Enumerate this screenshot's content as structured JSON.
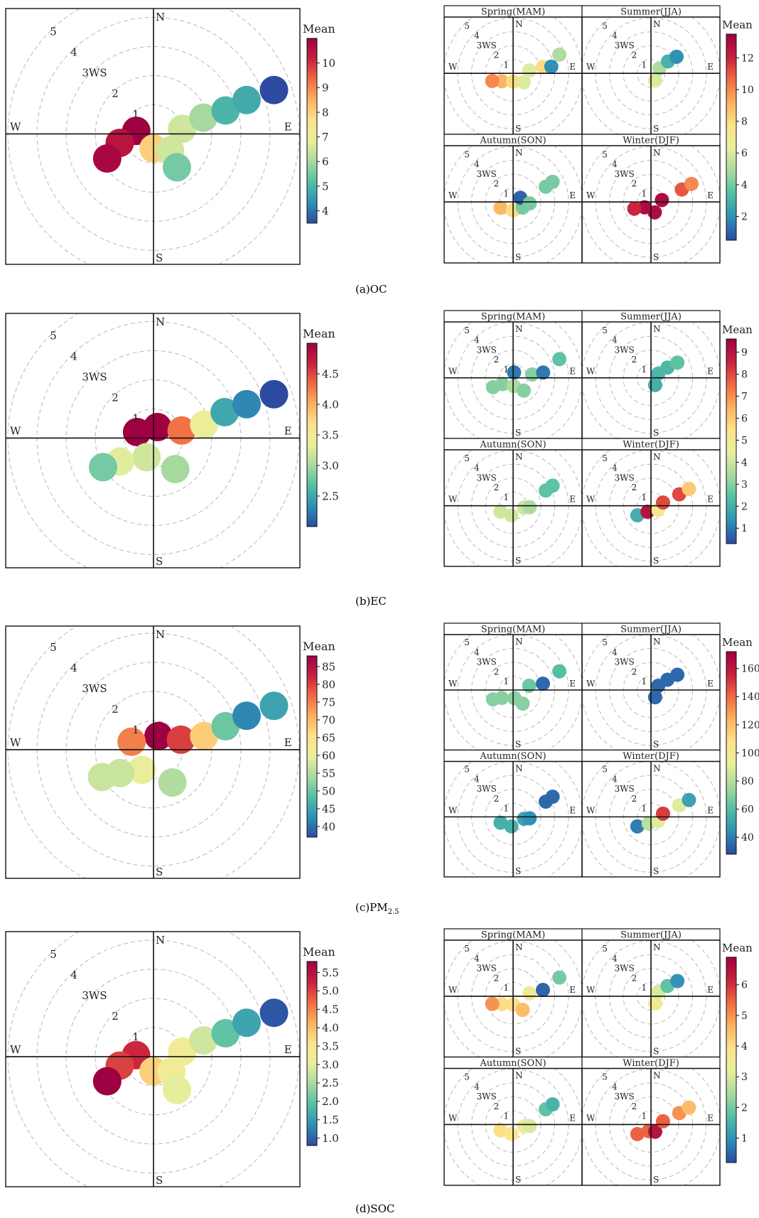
{
  "figure": {
    "colorbar_title": "Mean",
    "direction_labels": [
      "N",
      "E",
      "S",
      "W"
    ],
    "ring_labels": [
      "1",
      "2",
      "3WS",
      "4",
      "5"
    ],
    "season_titles": [
      "Spring(MAM)",
      "Summer(JJA)",
      "Autumn(SON)",
      "Winter(DJF)"
    ],
    "captions": [
      "(a)OC",
      "(b)EC",
      "(c)PM",
      "(d)SOC"
    ],
    "caption_subscript_pm": "2.5",
    "colormap": [
      "#2c4ba0",
      "#2f8fb6",
      "#53bfa5",
      "#a7d99f",
      "#e8ef9c",
      "#fde38c",
      "#fbb25f",
      "#f06b43",
      "#c8203f",
      "#9e0142"
    ]
  },
  "chart_data": [
    {
      "type": "heatmap",
      "subtype": "polar-plot",
      "title": "(a)OC",
      "panel": "annual",
      "colorbar_label": "Mean",
      "colorbar_ticks": [
        "4",
        "5",
        "6",
        "7",
        "8",
        "9",
        "10"
      ],
      "colorbar_range": [
        3.5,
        11
      ],
      "blobs": [
        {
          "ws": 0.6,
          "dir": 280,
          "value": 11
        },
        {
          "ws": 1.2,
          "dir": 255,
          "value": 10.5
        },
        {
          "ws": 1.8,
          "dir": 242,
          "value": 10.8
        },
        {
          "ws": 0.5,
          "dir": 180,
          "value": 8
        },
        {
          "ws": 0.8,
          "dir": 135,
          "value": 6.5
        },
        {
          "ws": 1.4,
          "dir": 145,
          "value": 5.5
        },
        {
          "ws": 1.0,
          "dir": 80,
          "value": 6.5
        },
        {
          "ws": 1.8,
          "dir": 72,
          "value": 6
        },
        {
          "ws": 2.6,
          "dir": 72,
          "value": 5
        },
        {
          "ws": 3.4,
          "dir": 70,
          "value": 4.8
        },
        {
          "ws": 4.4,
          "dir": 70,
          "value": 3.5
        }
      ]
    },
    {
      "type": "heatmap",
      "subtype": "polar-plot",
      "title": "(a)OC",
      "panel": "seasonal",
      "colorbar_label": "Mean",
      "colorbar_ticks": [
        "2",
        "4",
        "6",
        "8",
        "10",
        "12"
      ],
      "colorbar_range": [
        0.5,
        13.5
      ],
      "seasons": [
        {
          "season": "Spring(MAM)",
          "blobs": [
            {
              "ws": 1.0,
              "dir": 235,
              "value": 9
            },
            {
              "ws": 0.6,
              "dir": 180,
              "value": 8
            },
            {
              "ws": 1.6,
              "dir": 250,
              "value": 10
            },
            {
              "ws": 1.0,
              "dir": 130,
              "value": 6
            },
            {
              "ws": 1.2,
              "dir": 80,
              "value": 6
            },
            {
              "ws": 2.2,
              "dir": 78,
              "value": 8
            },
            {
              "ws": 2.8,
              "dir": 80,
              "value": 2
            },
            {
              "ws": 3.6,
              "dir": 68,
              "value": 5
            }
          ]
        },
        {
          "season": "Summer(JJA)",
          "blobs": [
            {
              "ws": 0.6,
              "dir": 150,
              "value": 6
            },
            {
              "ws": 0.7,
              "dir": 60,
              "value": 5
            },
            {
              "ws": 1.5,
              "dir": 55,
              "value": 3
            },
            {
              "ws": 2.2,
              "dir": 57,
              "value": 2
            }
          ]
        },
        {
          "season": "Autumn(SON)",
          "blobs": [
            {
              "ws": 1.0,
              "dir": 245,
              "value": 9
            },
            {
              "ws": 0.6,
              "dir": 180,
              "value": 8
            },
            {
              "ws": 0.8,
              "dir": 120,
              "value": 4
            },
            {
              "ws": 0.6,
              "dir": 60,
              "value": 1
            },
            {
              "ws": 1.2,
              "dir": 95,
              "value": 4
            },
            {
              "ws": 2.6,
              "dir": 65,
              "value": 4
            },
            {
              "ws": 3.2,
              "dir": 63,
              "value": 4
            }
          ]
        },
        {
          "season": "Winter(DJF)",
          "blobs": [
            {
              "ws": 0.6,
              "dir": 230,
              "value": 13
            },
            {
              "ws": 1.3,
              "dir": 248,
              "value": 12
            },
            {
              "ws": 0.8,
              "dir": 160,
              "value": 13
            },
            {
              "ws": 0.8,
              "dir": 80,
              "value": 13
            },
            {
              "ws": 2.4,
              "dir": 68,
              "value": 11
            },
            {
              "ws": 3.2,
              "dir": 66,
              "value": 10
            }
          ]
        }
      ]
    },
    {
      "type": "heatmap",
      "subtype": "polar-plot",
      "title": "(b)EC",
      "panel": "annual",
      "colorbar_label": "Mean",
      "colorbar_ticks": [
        "2.5",
        "3.0",
        "3.5",
        "4.0",
        "4.5"
      ],
      "colorbar_range": [
        2.0,
        5.0
      ],
      "blobs": [
        {
          "ws": 0.6,
          "dir": 290,
          "value": 5
        },
        {
          "ws": 0.4,
          "dir": 20,
          "value": 5
        },
        {
          "ws": 1.0,
          "dir": 75,
          "value": 4.3
        },
        {
          "ws": 0.7,
          "dir": 200,
          "value": 3.2
        },
        {
          "ws": 1.4,
          "dir": 235,
          "value": 3.3
        },
        {
          "ws": 2.0,
          "dir": 240,
          "value": 2.8
        },
        {
          "ws": 1.3,
          "dir": 145,
          "value": 3.0
        },
        {
          "ws": 1.8,
          "dir": 75,
          "value": 3.4
        },
        {
          "ws": 2.6,
          "dir": 70,
          "value": 2.5
        },
        {
          "ws": 3.4,
          "dir": 70,
          "value": 2.3
        },
        {
          "ws": 4.4,
          "dir": 70,
          "value": 2.0
        }
      ]
    },
    {
      "type": "heatmap",
      "subtype": "polar-plot",
      "title": "(b)EC",
      "panel": "seasonal",
      "colorbar_label": "Mean",
      "colorbar_ticks": [
        "1",
        "2",
        "3",
        "4",
        "5",
        "6",
        "7",
        "8",
        "9"
      ],
      "colorbar_range": [
        0.3,
        9.6
      ],
      "seasons": [
        {
          "season": "Spring(MAM)",
          "blobs": [
            {
              "ws": 0.9,
              "dir": 240,
              "value": 3
            },
            {
              "ws": 0.6,
              "dir": 175,
              "value": 3.5
            },
            {
              "ws": 1.6,
              "dir": 245,
              "value": 3
            },
            {
              "ws": 1.2,
              "dir": 140,
              "value": 3
            },
            {
              "ws": 0.4,
              "dir": 10,
              "value": 1
            },
            {
              "ws": 1.4,
              "dir": 80,
              "value": 3
            },
            {
              "ws": 2.2,
              "dir": 80,
              "value": 1
            },
            {
              "ws": 3.6,
              "dir": 68,
              "value": 2.5
            }
          ]
        },
        {
          "season": "Summer(JJA)",
          "blobs": [
            {
              "ws": 0.6,
              "dir": 150,
              "value": 2
            },
            {
              "ws": 0.6,
              "dir": 60,
              "value": 2.2
            },
            {
              "ws": 1.4,
              "dir": 58,
              "value": 2.2
            },
            {
              "ws": 2.2,
              "dir": 60,
              "value": 2.5
            }
          ]
        },
        {
          "season": "Autumn(SON)",
          "blobs": [
            {
              "ws": 1.0,
              "dir": 245,
              "value": 4
            },
            {
              "ws": 0.7,
              "dir": 190,
              "value": 4
            },
            {
              "ws": 0.8,
              "dir": 100,
              "value": 4
            },
            {
              "ws": 1.2,
              "dir": 95,
              "value": 3.5
            },
            {
              "ws": 2.6,
              "dir": 65,
              "value": 2.5
            },
            {
              "ws": 3.2,
              "dir": 63,
              "value": 2.5
            }
          ]
        },
        {
          "season": "Winter(DJF)",
          "blobs": [
            {
              "ws": 1.2,
              "dir": 235,
              "value": 2
            },
            {
              "ws": 0.5,
              "dir": 210,
              "value": 9
            },
            {
              "ws": 0.6,
              "dir": 120,
              "value": 5
            },
            {
              "ws": 0.9,
              "dir": 75,
              "value": 8
            },
            {
              "ws": 2.2,
              "dir": 68,
              "value": 8
            },
            {
              "ws": 3.0,
              "dir": 66,
              "value": 6
            }
          ]
        }
      ]
    },
    {
      "type": "heatmap",
      "subtype": "polar-plot",
      "title": "(c)PM2.5",
      "panel": "annual",
      "colorbar_label": "Mean",
      "colorbar_ticks": [
        "40",
        "45",
        "50",
        "55",
        "60",
        "65",
        "70",
        "75",
        "80",
        "85"
      ],
      "colorbar_range": [
        37,
        88
      ],
      "blobs": [
        {
          "ws": 0.5,
          "dir": 20,
          "value": 88
        },
        {
          "ws": 0.8,
          "dir": 290,
          "value": 75
        },
        {
          "ws": 1.0,
          "dir": 70,
          "value": 80
        },
        {
          "ws": 0.8,
          "dir": 210,
          "value": 60
        },
        {
          "ws": 1.4,
          "dir": 235,
          "value": 57
        },
        {
          "ws": 2.0,
          "dir": 242,
          "value": 57
        },
        {
          "ws": 1.3,
          "dir": 150,
          "value": 55
        },
        {
          "ws": 1.8,
          "dir": 75,
          "value": 68
        },
        {
          "ws": 2.6,
          "dir": 72,
          "value": 50
        },
        {
          "ws": 3.4,
          "dir": 70,
          "value": 42
        },
        {
          "ws": 4.4,
          "dir": 70,
          "value": 45
        }
      ]
    },
    {
      "type": "heatmap",
      "subtype": "polar-plot",
      "title": "(c)PM2.5",
      "panel": "seasonal",
      "colorbar_label": "Mean",
      "colorbar_ticks": [
        "40",
        "60",
        "80",
        "100",
        "120",
        "140",
        "160"
      ],
      "colorbar_range": [
        28,
        172
      ],
      "seasons": [
        {
          "season": "Spring(MAM)",
          "blobs": [
            {
              "ws": 1.0,
              "dir": 235,
              "value": 70
            },
            {
              "ws": 0.6,
              "dir": 170,
              "value": 70
            },
            {
              "ws": 1.6,
              "dir": 245,
              "value": 70
            },
            {
              "ws": 1.2,
              "dir": 145,
              "value": 70
            },
            {
              "ws": 1.2,
              "dir": 75,
              "value": 65
            },
            {
              "ws": 2.2,
              "dir": 78,
              "value": 35
            },
            {
              "ws": 3.6,
              "dir": 68,
              "value": 60
            }
          ]
        },
        {
          "season": "Summer(JJA)",
          "blobs": [
            {
              "ws": 0.6,
              "dir": 150,
              "value": 35
            },
            {
              "ws": 0.6,
              "dir": 60,
              "value": 35
            },
            {
              "ws": 1.4,
              "dir": 58,
              "value": 35
            },
            {
              "ws": 2.2,
              "dir": 60,
              "value": 35
            }
          ]
        },
        {
          "season": "Autumn(SON)",
          "blobs": [
            {
              "ws": 1.0,
              "dir": 245,
              "value": 55
            },
            {
              "ws": 0.7,
              "dir": 190,
              "value": 55
            },
            {
              "ws": 0.8,
              "dir": 100,
              "value": 50
            },
            {
              "ws": 1.2,
              "dir": 95,
              "value": 45
            },
            {
              "ws": 2.6,
              "dir": 65,
              "value": 35
            },
            {
              "ws": 3.2,
              "dir": 63,
              "value": 35
            }
          ]
        },
        {
          "season": "Winter(DJF)",
          "blobs": [
            {
              "ws": 1.2,
              "dir": 235,
              "value": 40
            },
            {
              "ws": 0.5,
              "dir": 200,
              "value": 80
            },
            {
              "ws": 0.6,
              "dir": 120,
              "value": 90
            },
            {
              "ws": 0.9,
              "dir": 75,
              "value": 150
            },
            {
              "ws": 2.2,
              "dir": 68,
              "value": 90
            },
            {
              "ws": 3.0,
              "dir": 66,
              "value": 50
            }
          ]
        }
      ]
    },
    {
      "type": "heatmap",
      "subtype": "polar-plot",
      "title": "(d)SOC",
      "panel": "annual",
      "colorbar_label": "Mean",
      "colorbar_ticks": [
        "1.0",
        "1.5",
        "2.0",
        "2.5",
        "3.0",
        "3.5",
        "4.0",
        "4.5",
        "5.0",
        "5.5"
      ],
      "colorbar_range": [
        0.8,
        5.8
      ],
      "blobs": [
        {
          "ws": 0.6,
          "dir": 275,
          "value": 5.2
        },
        {
          "ws": 1.2,
          "dir": 255,
          "value": 5.0
        },
        {
          "ws": 1.8,
          "dir": 242,
          "value": 5.8
        },
        {
          "ws": 0.5,
          "dir": 180,
          "value": 3.8
        },
        {
          "ws": 0.8,
          "dir": 130,
          "value": 3.2
        },
        {
          "ws": 1.4,
          "dir": 145,
          "value": 3.0
        },
        {
          "ws": 1.0,
          "dir": 80,
          "value": 3.2
        },
        {
          "ws": 1.8,
          "dir": 72,
          "value": 2.8
        },
        {
          "ws": 2.6,
          "dir": 72,
          "value": 2.0
        },
        {
          "ws": 3.4,
          "dir": 70,
          "value": 1.6
        },
        {
          "ws": 4.4,
          "dir": 70,
          "value": 0.9
        }
      ]
    },
    {
      "type": "heatmap",
      "subtype": "polar-plot",
      "title": "(d)SOC",
      "panel": "seasonal",
      "colorbar_label": "Mean",
      "colorbar_ticks": [
        "1",
        "2",
        "3",
        "4",
        "5",
        "6"
      ],
      "colorbar_range": [
        0.2,
        6.9
      ],
      "seasons": [
        {
          "season": "Spring(MAM)",
          "blobs": [
            {
              "ws": 1.0,
              "dir": 235,
              "value": 4
            },
            {
              "ws": 0.6,
              "dir": 180,
              "value": 4
            },
            {
              "ws": 1.6,
              "dir": 250,
              "value": 5
            },
            {
              "ws": 1.2,
              "dir": 145,
              "value": 4.5
            },
            {
              "ws": 1.2,
              "dir": 80,
              "value": 3.5
            },
            {
              "ws": 2.2,
              "dir": 78,
              "value": 0.5
            },
            {
              "ws": 3.6,
              "dir": 68,
              "value": 2
            }
          ]
        },
        {
          "season": "Summer(JJA)",
          "blobs": [
            {
              "ws": 0.6,
              "dir": 150,
              "value": 3.5
            },
            {
              "ws": 0.6,
              "dir": 60,
              "value": 3
            },
            {
              "ws": 1.4,
              "dir": 58,
              "value": 1.8
            },
            {
              "ws": 2.2,
              "dir": 60,
              "value": 1
            }
          ]
        },
        {
          "season": "Autumn(SON)",
          "blobs": [
            {
              "ws": 1.0,
              "dir": 245,
              "value": 4
            },
            {
              "ws": 0.7,
              "dir": 190,
              "value": 3.8
            },
            {
              "ws": 0.8,
              "dir": 100,
              "value": 3.5
            },
            {
              "ws": 1.2,
              "dir": 95,
              "value": 3
            },
            {
              "ws": 2.6,
              "dir": 65,
              "value": 1.8
            },
            {
              "ws": 3.2,
              "dir": 63,
              "value": 1.5
            }
          ]
        },
        {
          "season": "Winter(DJF)",
          "blobs": [
            {
              "ws": 1.2,
              "dir": 235,
              "value": 5.5
            },
            {
              "ws": 0.5,
              "dir": 200,
              "value": 5.5
            },
            {
              "ws": 0.6,
              "dir": 150,
              "value": 6.5
            },
            {
              "ws": 0.9,
              "dir": 75,
              "value": 5.5
            },
            {
              "ws": 2.2,
              "dir": 68,
              "value": 5
            },
            {
              "ws": 3.0,
              "dir": 66,
              "value": 4.5
            }
          ]
        }
      ]
    }
  ]
}
